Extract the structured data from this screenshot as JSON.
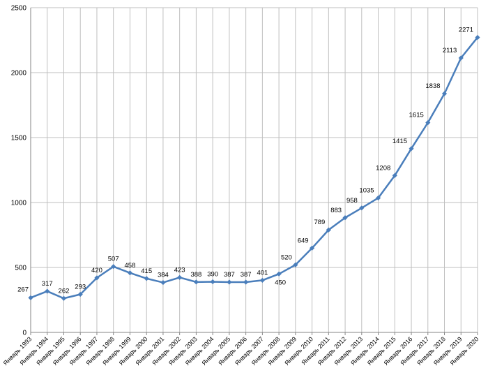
{
  "chart_data": {
    "type": "line",
    "title": "",
    "xlabel": "",
    "ylabel": "",
    "ylim": [
      0,
      2500
    ],
    "yticks": [
      0,
      500,
      1000,
      1500,
      2000,
      2500
    ],
    "grid": true,
    "legend": "none",
    "categories": [
      "Январь 1993",
      "Январь 1994",
      "Январь 1995",
      "Январь 1996",
      "Январь 1997",
      "Январь 1998",
      "Январь 1999",
      "Январь 2000",
      "Январь 2001",
      "Январь 2002",
      "Январь 2003",
      "Январь 2004",
      "Январь 2005",
      "Январь 2006",
      "Январь 2007",
      "Январь 2008",
      "Январь 2009",
      "Январь 2010",
      "Январь 2011",
      "Январь 2012",
      "Январь 2013",
      "Январь 2014",
      "Январь 2015",
      "Январь 2016",
      "Январь 2017",
      "Январь 2018",
      "Январь 2019",
      "Январь 2020"
    ],
    "series": [
      {
        "values": [
          267,
          317,
          262,
          293,
          420,
          507,
          458,
          415,
          384,
          423,
          388,
          390,
          387,
          387,
          401,
          450,
          520,
          649,
          789,
          883,
          958,
          1035,
          1208,
          1415,
          1615,
          1838,
          2113,
          2271
        ],
        "color": "#4a7ebb"
      }
    ]
  }
}
